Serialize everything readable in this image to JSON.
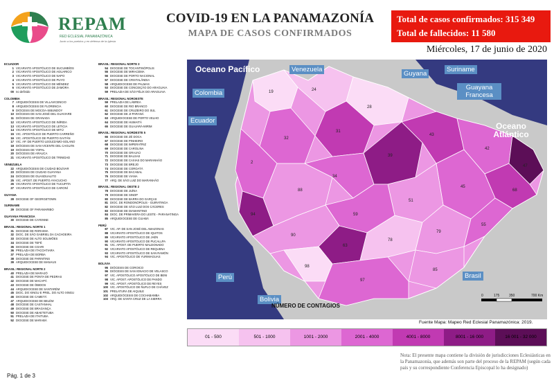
{
  "logo": {
    "brand": "REPAM",
    "subtitle": "RED ECLESIAL PANAMAZÓNICA",
    "tagline": "Junto a los pueblos y en defensa de la Iglesia"
  },
  "header": {
    "title": "COVID-19 EN LA PANAMAZONÍA",
    "subtitle": "MAPA DE CASOS CONFIRMADOS",
    "confirmed_label": "Total de casos confirmados: 315 349",
    "deaths_label": "Total de fallecidos: 11 580",
    "date": "Miércoles, 17 de junio de 2020"
  },
  "legend_left": [
    {
      "group": "ECUADOR",
      "items": [
        [
          "1",
          "VICARIATO APOSTÓLICO DE SUCUMBÍOS"
        ],
        [
          "2",
          "VICARIATO APOSTÓLICO DE AGUARICO"
        ],
        [
          "3",
          "VICARIATO APOSTÓLICO DE NAPO"
        ],
        [
          "4",
          "VICARIATO APOSTÓLICO DE PUYO"
        ],
        [
          "5",
          "VICARIATO APOSTÓLICO DE MÉNDEZ"
        ],
        [
          "6",
          "VICARIATO APOSTÓLICO DE ZAMORA"
        ],
        [
          "00",
          "no definido"
        ]
      ]
    },
    {
      "group": "COLOMBIA",
      "items": [
        [
          "7",
          "ARQUIDIÓCESIS DE VILLAVICENCIO"
        ],
        [
          "8",
          "ARQUIDIÓCESIS DE FLORENCIA"
        ],
        [
          "9",
          "DIÓCESIS DE MOCOA-SIBUNDOY"
        ],
        [
          "10",
          "DIÓCESIS DE SAN JOSÉ DEL GUAVIARE"
        ],
        [
          "11",
          "DIÓCESIS DE GRANADA"
        ],
        [
          "12",
          "VICARIATO APOSTÓLICO DE INÍRIDA"
        ],
        [
          "13",
          "VICARIATO APOSTÓLICO DE LETICIA"
        ],
        [
          "14",
          "VICARIATO APOSTÓLICO DE MITÚ"
        ],
        [
          "15",
          "VIC. APOSTÓLICO DE PUERTO CARREÑO"
        ],
        [
          "16",
          "VIC. APOSTÓLICO DE PUERTO GAITÁN"
        ],
        [
          "17",
          "VIC. AP. DE PUERTO LEGUÍZAMO-SOLANO"
        ],
        [
          "18",
          "DIÓCESIS DE SAN VICENTE DEL CAGUÁN"
        ],
        [
          "19",
          "DIÓCESIS DE YOPAL"
        ],
        [
          "20",
          "DIÓCESIS DE ARAUCA"
        ],
        [
          "21",
          "VICARIATO APOSTÓLICO DE TRINIDAD"
        ]
      ]
    },
    {
      "group": "VENEZUELA",
      "items": [
        [
          "22",
          "ARQUIDIÓCESIS DE CIUDAD BOLÍVAR"
        ],
        [
          "23",
          "DIÓCESIS DE CIUDAD GUAYANA"
        ],
        [
          "24",
          "DIÓCESIS DE GUASDUALITO"
        ],
        [
          "25",
          "VIC. APOST. DE PUERTO AYACUCHO"
        ],
        [
          "26",
          "VICARIATO APOSTÓLICO DE TUCUPITA"
        ],
        [
          "27",
          "VICARIATO APOSTÓLICO DE CARONÍ"
        ]
      ]
    },
    {
      "group": "GUYANA",
      "items": [
        [
          "28",
          "DIOCESE OF GEORGETOWN"
        ]
      ]
    },
    {
      "group": "SURINAME",
      "items": [
        [
          "29",
          "DIOCESE OF PARAMARIBO"
        ]
      ]
    },
    {
      "group": "GUAYANA FRANCESA",
      "items": [
        [
          "30",
          "DIOCESE DE CAYENNE"
        ]
      ]
    },
    {
      "group": "BRASIL: REGIONAL NORTE 1",
      "items": [
        [
          "31",
          "DIOCESE DE RORAIMA"
        ],
        [
          "32",
          "DIOC. DE SÃO GABRIEL DA CACHOEIRA"
        ],
        [
          "33",
          "DIOCESE DE ALTO SOLIMÕES"
        ],
        [
          "34",
          "DIOCESE DE TEFÉ"
        ],
        [
          "35",
          "DIOCESE DE COARI"
        ],
        [
          "36",
          "PRELAZIA DE ITACOATIARA"
        ],
        [
          "37",
          "PRELAZIA DE BORBA"
        ],
        [
          "38",
          "DIOCESE DE PARINTINS"
        ],
        [
          "39",
          "ARQUIDIOCESE DE MANAUS"
        ]
      ]
    },
    {
      "group": "BRASIL: REGIONAL NORTE 2",
      "items": [
        [
          "40",
          "PRELAZIA DE MARAJÓ"
        ],
        [
          "41",
          "DIOCESE DE PONTA DE PEDRAS"
        ],
        [
          "42",
          "DIOCESE DE MACAPÁ"
        ],
        [
          "43",
          "DIOCESE DE ÓBIDOS"
        ],
        [
          "44",
          "ARQUIDIOCESE DE SANTARÉM"
        ],
        [
          "45",
          "DIOC. DO XINGU E PREL. DO ALTO XINGU"
        ],
        [
          "46",
          "DIOCESE DE CAMETÁ"
        ],
        [
          "47",
          "ARQUIDIOCESE DE BELÉM"
        ],
        [
          "48",
          "DIOCESE DE CASTANHAL"
        ],
        [
          "49",
          "DIOCESE DE BRAGANÇA"
        ],
        [
          "50",
          "DIOCESE DE ABAETETUBA"
        ],
        [
          "51",
          "PRELAZIA DE ITAITUBA"
        ],
        [
          "52",
          "DIOCESE DE MARABÁ"
        ]
      ]
    }
  ],
  "legend_mid": [
    {
      "group": "BRASIL: REGIONAL NORTE 3",
      "items": [
        [
          "54",
          "DIOCESE DE TOCANTINÓPOLIS"
        ],
        [
          "55",
          "DIOCESE DE MIRACEMA"
        ],
        [
          "56",
          "DIOCESE DE PORTO NACIONAL"
        ],
        [
          "57",
          "DIOCESE DE CRISTALÂNDIA"
        ],
        [
          "58",
          "ARQUIDIOCESE DE PALMAS"
        ],
        [
          "53",
          "DIOCESE DE CONCEIÇÃO DO ARAGUAIA"
        ],
        [
          "59",
          "PRELAZIA DE SÃO FÉLIX DO ARAGUAIA"
        ]
      ]
    },
    {
      "group": "BRASIL: REGIONAL NOROESTE",
      "items": [
        [
          "59",
          "PRELAZIA DE LÁBREA"
        ],
        [
          "60",
          "DIOCESE DE RIO BRANCO"
        ],
        [
          "61",
          "DIOCESE DE CRUZEIRO DO SUL"
        ],
        [
          "62",
          "DIOCESE DE JI-PARANÁ"
        ],
        [
          "63",
          "ARQUIDIOCESE DE PORTO VELHO"
        ],
        [
          "64",
          "DIOCESE DE HUMAITÁ"
        ],
        [
          "65",
          "DIOCESE DE GUAJARÁ-MIRIM"
        ]
      ]
    },
    {
      "group": "BRASIL: REGIONAL NORDESTE 5",
      "items": [
        [
          "66",
          "DIOCESE DE ZÉ DOCA"
        ],
        [
          "67",
          "DIOCESE DE PINHEIRO"
        ],
        [
          "68",
          "DIOCESE DE IMPERATRIZ"
        ],
        [
          "69",
          "DIOCESE DE CAROLINA"
        ],
        [
          "70",
          "DIOCESE DE GRAJAÚ"
        ],
        [
          "71",
          "DIOCESE DE BALSAS"
        ],
        [
          "72",
          "DIOCESE DE CAXIAS DO MARANHÃO"
        ],
        [
          "73",
          "DIOCESE DE BREJO"
        ],
        [
          "74",
          "DIOCESE DE COROATÁ"
        ],
        [
          "75",
          "DIOCESE DE BACABAL"
        ],
        [
          "76",
          "DIOCESE DE VIANA"
        ],
        [
          "77",
          "ARQ. DE SÃO LUIZ DO MARANHÃO"
        ]
      ]
    },
    {
      "group": "BRASIL: REGIONAL OESTE 2",
      "items": [
        [
          "78",
          "DIOCESE DE JUÍNA"
        ],
        [
          "79",
          "DIOCESE DE SINOP"
        ],
        [
          "80",
          "DIOCESE DE BARRA DO GARÇAS"
        ],
        [
          "81",
          "DIOC. DE RONDONÓPOLIS - GUIRATINGA"
        ],
        [
          "82",
          "DIOCESE DE SÃO LUIZ DOS CÁCERES"
        ],
        [
          "83",
          "DIOCESE DE DIAMANTINO"
        ],
        [
          "84",
          "DIOC. DE PRIMAVERA DO LESTE - PARANATINGA"
        ],
        [
          "85",
          "ARQUIDIOCESE DE CUIABÁ"
        ]
      ]
    },
    {
      "group": "PERÚ",
      "items": [
        [
          "87",
          "VIC. AP. DE SAN JOSÉ DEL AMAZONAS"
        ],
        [
          "88",
          "VICARIATO APOSTÓLICO DE IQUITOS"
        ],
        [
          "89",
          "VICARIATO APOSTÓLICO DE JAÉN"
        ],
        [
          "90",
          "VICARIATO APOSTÓLICO DE PUCALLPA"
        ],
        [
          "91",
          "VIC. APOST. DE PUERTO MALDONADO"
        ],
        [
          "92",
          "VICARIATO APOSTÓLICO DE REQUENA"
        ],
        [
          "93",
          "VICARIATO APOSTÓLICO DE SAN RAMÓN"
        ],
        [
          "94",
          "VIC. APOSTÓLICO DE YURIMAGUAS"
        ]
      ]
    },
    {
      "group": "BOLIVIA",
      "items": [
        [
          "95",
          "DIÓCESIS DE COROICO"
        ],
        [
          "96",
          "DIÓCESIS DE SAN IGNACIO DE VELASCO"
        ],
        [
          "97",
          "VIC. APOSTÓLICO APOSTÓLICO DE BENI"
        ],
        [
          "98",
          "VIC. APOST. APOSTÓLICO DE PANDO"
        ],
        [
          "99",
          "VIC. APOST. APOSTÓLICO DE REYES"
        ],
        [
          "100",
          "VIC. APOSTÓLICO DE ÑUFLO DE CHÁVEZ"
        ],
        [
          "101",
          "PRELATURA DE AIQUILE"
        ],
        [
          "102",
          "ARQUIDIÓCESIS DE COCHABAMBA"
        ],
        [
          "103",
          "ARQ. DE SANTA CRUZ DE LA SIERRA"
        ]
      ]
    }
  ],
  "map": {
    "oceans": [
      "Oceano Pacífico",
      "Oceano Atlántico"
    ],
    "countries": [
      "Venezuela",
      "Colombia",
      "Guyana",
      "Suriname",
      "Guayana Francesa",
      "Ecuador",
      "Perú",
      "Bolivia",
      "Brasil"
    ],
    "scale_ticks": [
      "0",
      "175",
      "350",
      "700 Km"
    ],
    "colors": {
      "ocean": "#343a80",
      "outside": "#c9c9c9",
      "border": "#ffffff"
    }
  },
  "contagion_legend": {
    "title": "NÚMERO DE CONTAGIOS",
    "bins": [
      {
        "label": "01 - 500",
        "color": "#fbdcf6"
      },
      {
        "label": "501 - 1000",
        "color": "#f6c2ef"
      },
      {
        "label": "1001 - 2000",
        "color": "#ec97e3"
      },
      {
        "label": "2001 - 4000",
        "color": "#dd67d2"
      },
      {
        "label": "4001 - 8000",
        "color": "#c13ab2"
      },
      {
        "label": "8001 - 16 000",
        "color": "#8e1c86"
      },
      {
        "label": "16 001 - 32 000",
        "color": "#5c0e57"
      }
    ]
  },
  "source": "Fuente Mapa: Mapeo Red Eclesial Panamazónica: 2019.",
  "note": "Nota: El presente mapa contiene la división de jurisdicciones Eclesiásticas en la Panamazonía, que además son parte del proceso de la REPAM (según cada país y su correspondiente Conferencia Episcopal lo ha designado)",
  "page_label": "Pág. 1 de 3"
}
